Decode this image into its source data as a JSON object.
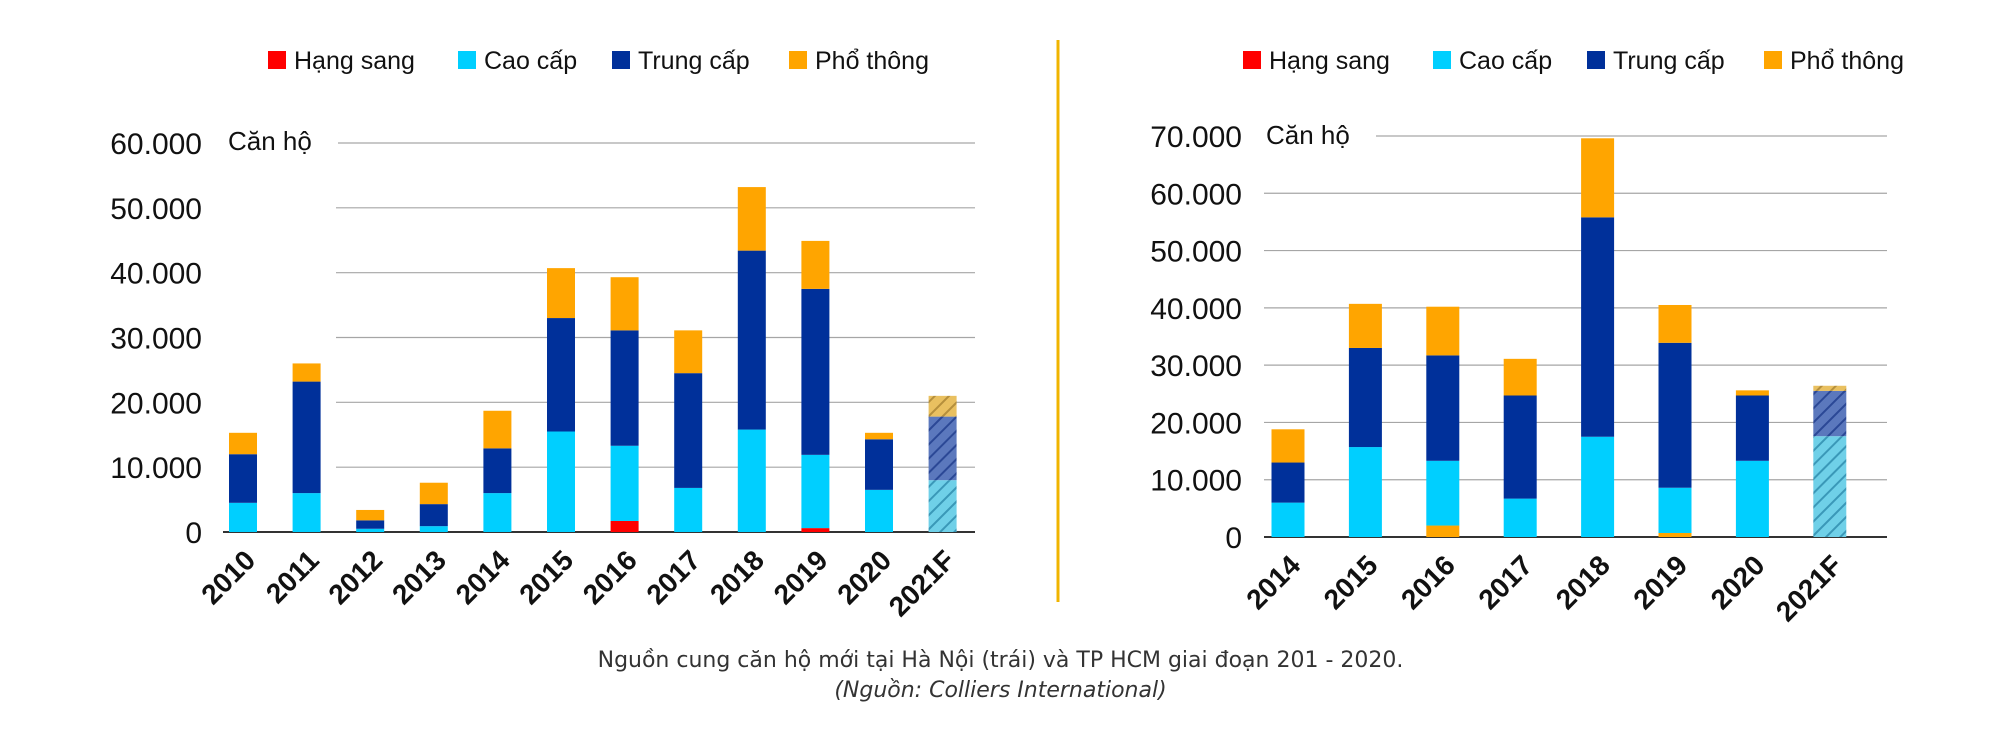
{
  "caption": {
    "line": "Nguồn cung căn hộ mới tại Hà Nội (trái) và TP HCM giai đoạn 201 - 2020.",
    "source": "(Nguồn: Colliers International)"
  },
  "colors": {
    "Hạng sang": "#ff0000",
    "Cao cấp": "#00cfff",
    "Trung cấp": "#00309a",
    "Phổ thông": "#ffa500",
    "divider": "#f0b400",
    "grid": "#a6a6a6"
  },
  "chart_data": [
    {
      "type": "bar",
      "stacked": true,
      "ylabel": "Căn hộ",
      "ylim": [
        0,
        60000
      ],
      "yticks": [
        "0",
        "10.000",
        "20.000",
        "30.000",
        "40.000",
        "50.000",
        "60.000"
      ],
      "grid": true,
      "legend_position": "top",
      "forecast_category": "2021F",
      "categories": [
        "2010",
        "2011",
        "2012",
        "2013",
        "2014",
        "2015",
        "2016",
        "2017",
        "2018",
        "2019",
        "2020",
        "2021F"
      ],
      "series": [
        {
          "name": "Hạng sang",
          "values": [
            0,
            0,
            0,
            0,
            0,
            0,
            1700,
            0,
            0,
            600,
            0,
            0
          ]
        },
        {
          "name": "Cao cấp",
          "values": [
            4500,
            6000,
            500,
            900,
            6000,
            15500,
            11600,
            6800,
            15800,
            11300,
            6500,
            8000
          ]
        },
        {
          "name": "Trung cấp",
          "values": [
            7500,
            17200,
            1300,
            3400,
            6900,
            17500,
            17800,
            17700,
            27600,
            25600,
            7800,
            9800
          ]
        },
        {
          "name": "Phổ thông",
          "values": [
            3300,
            2800,
            1600,
            3300,
            5800,
            7700,
            8200,
            6600,
            9800,
            7400,
            1000,
            3200
          ]
        }
      ]
    },
    {
      "type": "bar",
      "stacked": true,
      "ylabel": "Căn hộ",
      "ylim": [
        0,
        70000
      ],
      "yticks": [
        "0",
        "10.000",
        "20.000",
        "30.000",
        "40.000",
        "50.000",
        "60.000",
        "70.000"
      ],
      "grid": true,
      "legend_position": "top",
      "forecast_category": "2021F",
      "categories": [
        "2014",
        "2015",
        "2016",
        "2017",
        "2018",
        "2019",
        "2020",
        "2021F"
      ],
      "series": [
        {
          "name": "Phổ thông",
          "values": [
            0,
            0,
            2000,
            0,
            0,
            700,
            0,
            0
          ]
        },
        {
          "name": "Hạng sang",
          "values": [
            0,
            0,
            0,
            0,
            0,
            0,
            0,
            0
          ]
        },
        {
          "name": "Cao cấp",
          "values": [
            6000,
            15700,
            11300,
            6700,
            17500,
            7900,
            13300,
            17600
          ]
        },
        {
          "name": "Trung cấp",
          "values": [
            7000,
            17300,
            18400,
            18000,
            38300,
            25300,
            11400,
            7900
          ]
        },
        {
          "name": "Phổ thông",
          "values": [
            5800,
            7700,
            8500,
            6400,
            13800,
            6600,
            900,
            900
          ]
        }
      ]
    }
  ]
}
